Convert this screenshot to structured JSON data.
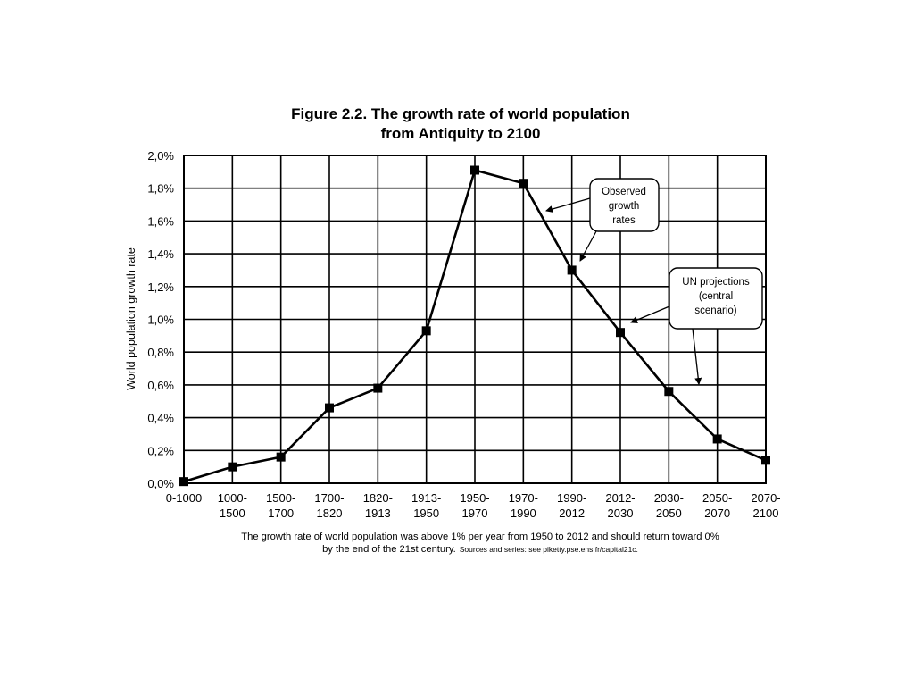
{
  "chart_data": {
    "type": "line",
    "title": "Figure 2.2. The growth rate of world population",
    "subtitle": "from Antiquity to 2100",
    "xlabel": "",
    "ylabel": "World population growth rate",
    "ylim": [
      0,
      2.0
    ],
    "y_ticks": [
      "0,0%",
      "0,2%",
      "0,4%",
      "0,6%",
      "0,8%",
      "1,0%",
      "1,2%",
      "1,4%",
      "1,6%",
      "1,8%",
      "2,0%"
    ],
    "grid": true,
    "categories": [
      [
        "0-1000"
      ],
      [
        "1000-",
        "1500"
      ],
      [
        "1500-",
        "1700"
      ],
      [
        "1700-",
        "1820"
      ],
      [
        "1820-",
        "1913"
      ],
      [
        "1913-",
        "1950"
      ],
      [
        "1950-",
        "1970"
      ],
      [
        "1970-",
        "1990"
      ],
      [
        "1990-",
        "2012"
      ],
      [
        "2012-",
        "2030"
      ],
      [
        "2030-",
        "2050"
      ],
      [
        "2050-",
        "2070"
      ],
      [
        "2070-",
        "2100"
      ]
    ],
    "series": [
      {
        "name": "World population growth rate",
        "values": [
          0.01,
          0.1,
          0.16,
          0.46,
          0.58,
          0.93,
          1.91,
          1.83,
          1.3,
          0.92,
          0.56,
          0.27,
          0.14
        ]
      }
    ],
    "annotations": [
      {
        "id": "observed",
        "lines": [
          "Observed",
          "growth",
          "rates"
        ]
      },
      {
        "id": "un",
        "lines": [
          "UN  projections",
          "(central",
          "scenario)"
        ]
      }
    ],
    "caption": {
      "line1": "The growth rate of world population was above 1% per year from 1950 to 2012 and should return toward 0%",
      "line2_main": "by the end of the 21st century.",
      "line2_sources": "Sources and series: see piketty.pse.ens.fr/capital21c."
    }
  }
}
